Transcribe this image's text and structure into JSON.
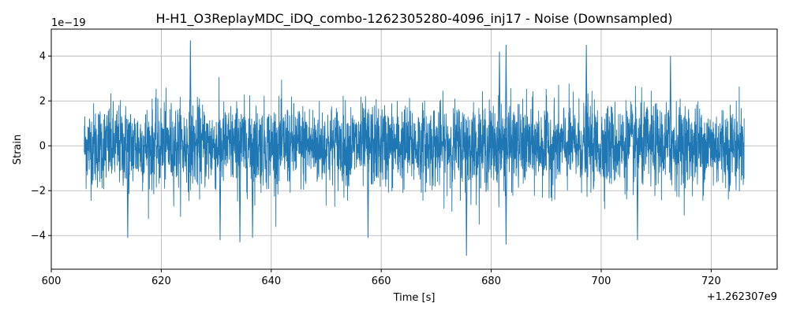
{
  "chart_data": {
    "type": "line",
    "title": "H-H1_O3ReplayMDC_iDQ_combo-1262305280-4096_inj17 - Noise (Downsampled)",
    "xlabel": "Time [s]",
    "ylabel": "Strain",
    "x_offset_label": "+1.262307e9",
    "y_scale_label": "1e−19",
    "xlim": [
      600,
      732
    ],
    "ylim": [
      -5.5,
      5.2
    ],
    "xticks": [
      600,
      620,
      640,
      660,
      680,
      700,
      720
    ],
    "xtick_labels": [
      "600",
      "620",
      "640",
      "660",
      "680",
      "700",
      "720"
    ],
    "yticks": [
      -4,
      -2,
      0,
      2,
      4
    ],
    "ytick_labels": [
      "−4",
      "−2",
      "0",
      "2",
      "4"
    ],
    "grid": true,
    "series": [
      {
        "color": "#1f77b4",
        "x_start": 606,
        "x_end": 726,
        "typical_amplitude": 1.5,
        "peaks": [
          {
            "x": 625.3,
            "y": 4.7
          },
          {
            "x": 681.5,
            "y": 4.2
          },
          {
            "x": 682.7,
            "y": 4.5
          },
          {
            "x": 697.3,
            "y": 4.5
          },
          {
            "x": 712.6,
            "y": 4.0
          },
          {
            "x": 675.5,
            "y": -4.9
          },
          {
            "x": 682.7,
            "y": -4.4
          },
          {
            "x": 634.3,
            "y": -4.3
          },
          {
            "x": 636.6,
            "y": -4.1
          },
          {
            "x": 630.7,
            "y": -4.2
          },
          {
            "x": 706.6,
            "y": -4.2
          },
          {
            "x": 613.9,
            "y": -4.1
          },
          {
            "x": 657.6,
            "y": -4.1
          }
        ]
      }
    ]
  }
}
